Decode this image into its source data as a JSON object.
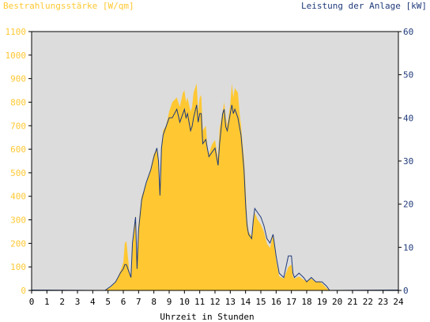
{
  "chart_data": {
    "type": "area",
    "title_left": "Bestrahlungsstärke [W/qm]",
    "title_right": "Leistung der Anlage [kW]",
    "xlabel": "Uhrzeit in Stunden",
    "x_range": [
      0,
      24
    ],
    "x_ticks": [
      "0",
      "1",
      "2",
      "3",
      "4",
      "5",
      "6",
      "7",
      "8",
      "9",
      "10",
      "11",
      "12",
      "13",
      "14",
      "15",
      "16",
      "17",
      "18",
      "19",
      "20",
      "21",
      "22",
      "23",
      "24"
    ],
    "y_left_range": [
      0,
      1100
    ],
    "y_left_ticks": [
      "0",
      "100",
      "200",
      "300",
      "400",
      "500",
      "600",
      "700",
      "800",
      "900",
      "1000",
      "1100"
    ],
    "y_right_range": [
      0,
      60
    ],
    "y_right_ticks": [
      "0",
      "10",
      "20",
      "30",
      "40",
      "50",
      "60"
    ],
    "grid": false,
    "colors": {
      "plot_background": "#dcdcdc",
      "irradiance_fill": "#ffc832",
      "power_line": "#1f3a7a",
      "left_axis_text": "#ffc832",
      "right_axis_text": "#1f3a7a",
      "frame": "#000000"
    },
    "series": [
      {
        "axis": "left",
        "style": "filled-area",
        "x": [
          4.8,
          5.2,
          5.5,
          5.8,
          6.0,
          6.1,
          6.2,
          6.4,
          6.5,
          6.6,
          6.8,
          6.9,
          7.0,
          7.2,
          7.5,
          7.8,
          8.0,
          8.2,
          8.3,
          8.4,
          8.5,
          8.6,
          8.8,
          9.0,
          9.2,
          9.5,
          9.7,
          9.9,
          10.0,
          10.1,
          10.2,
          10.4,
          10.5,
          10.6,
          10.8,
          10.9,
          11.0,
          11.1,
          11.2,
          11.4,
          11.5,
          11.6,
          11.8,
          12.0,
          12.2,
          12.3,
          12.5,
          12.6,
          12.7,
          12.8,
          13.0,
          13.1,
          13.2,
          13.3,
          13.5,
          13.6,
          13.7,
          13.9,
          14.0,
          14.1,
          14.2,
          14.4,
          14.5,
          14.6,
          14.8,
          15.0,
          15.2,
          15.4,
          15.6,
          15.8,
          16.0,
          16.2,
          16.5,
          16.8,
          17.0,
          17.1,
          17.2,
          17.5,
          17.8,
          18.0,
          18.3,
          18.6,
          18.8,
          19.0,
          19.3,
          19.5
        ],
        "values": [
          0,
          15,
          35,
          80,
          120,
          200,
          210,
          80,
          60,
          190,
          320,
          110,
          280,
          400,
          450,
          520,
          580,
          600,
          540,
          420,
          600,
          680,
          700,
          760,
          800,
          820,
          780,
          840,
          850,
          800,
          820,
          760,
          780,
          840,
          880,
          760,
          820,
          830,
          680,
          700,
          610,
          580,
          620,
          640,
          560,
          690,
          760,
          800,
          740,
          700,
          790,
          880,
          820,
          860,
          840,
          760,
          700,
          560,
          440,
          300,
          250,
          230,
          300,
          330,
          300,
          280,
          250,
          200,
          180,
          240,
          130,
          60,
          50,
          100,
          110,
          60,
          50,
          60,
          45,
          40,
          50,
          35,
          40,
          30,
          10,
          0
        ]
      },
      {
        "axis": "right",
        "style": "line",
        "x": [
          4.8,
          5.2,
          5.5,
          5.8,
          6.0,
          6.1,
          6.2,
          6.4,
          6.5,
          6.6,
          6.8,
          6.9,
          7.0,
          7.2,
          7.5,
          7.8,
          8.0,
          8.2,
          8.3,
          8.4,
          8.5,
          8.6,
          8.8,
          9.0,
          9.2,
          9.5,
          9.7,
          9.9,
          10.0,
          10.1,
          10.2,
          10.4,
          10.5,
          10.6,
          10.8,
          10.9,
          11.0,
          11.1,
          11.2,
          11.4,
          11.5,
          11.6,
          11.8,
          12.0,
          12.2,
          12.3,
          12.5,
          12.6,
          12.7,
          12.8,
          13.0,
          13.1,
          13.2,
          13.3,
          13.5,
          13.6,
          13.7,
          13.9,
          14.0,
          14.1,
          14.2,
          14.4,
          14.5,
          14.6,
          14.8,
          15.0,
          15.2,
          15.4,
          15.6,
          15.8,
          16.0,
          16.2,
          16.5,
          16.8,
          17.0,
          17.1,
          17.2,
          17.5,
          17.8,
          18.0,
          18.3,
          18.6,
          18.8,
          19.0,
          19.3,
          19.5
        ],
        "values": [
          0,
          1,
          2,
          4,
          5,
          6,
          6,
          4,
          3,
          11,
          17,
          5,
          14,
          21,
          25,
          28,
          31,
          33,
          30,
          22,
          33,
          36,
          38,
          40,
          40,
          42,
          39,
          41,
          42,
          40,
          41,
          37,
          38,
          40,
          43,
          39,
          41,
          41,
          34,
          35,
          33,
          31,
          32,
          33,
          29,
          34,
          41,
          42,
          38,
          37,
          41,
          43,
          41,
          42,
          40,
          38,
          36,
          28,
          20,
          15,
          13,
          12,
          16,
          19,
          18,
          17,
          15,
          12,
          11,
          13,
          8,
          4,
          3,
          8,
          8,
          4,
          3,
          4,
          3,
          2,
          3,
          2,
          2,
          2,
          1,
          0
        ]
      }
    ]
  }
}
